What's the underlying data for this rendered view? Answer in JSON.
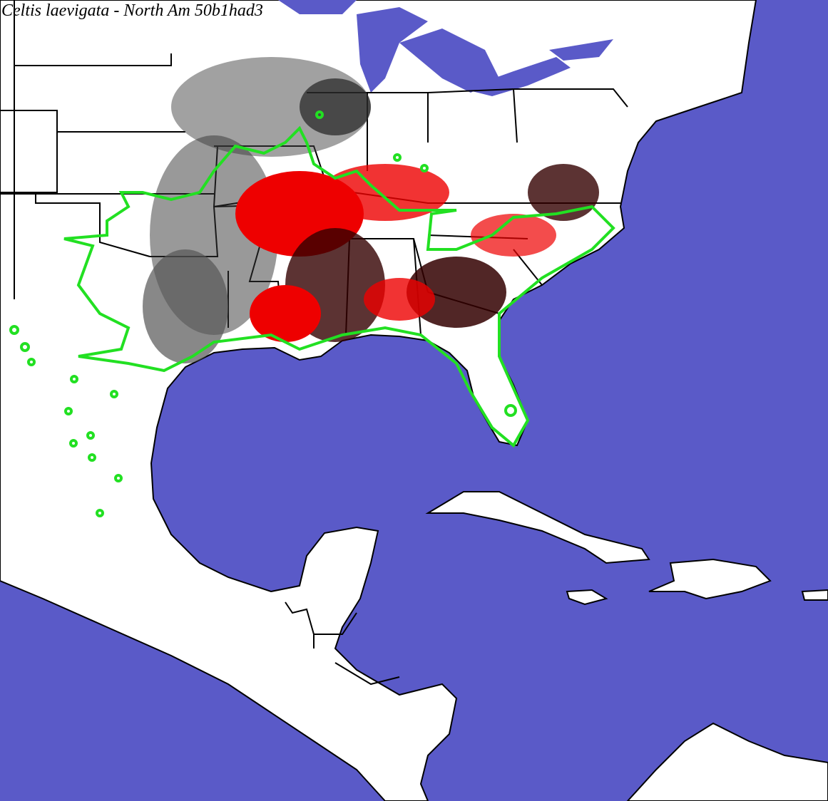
{
  "header": {
    "title": "Celtis laevigata - North Am 50b1had3"
  }
}
